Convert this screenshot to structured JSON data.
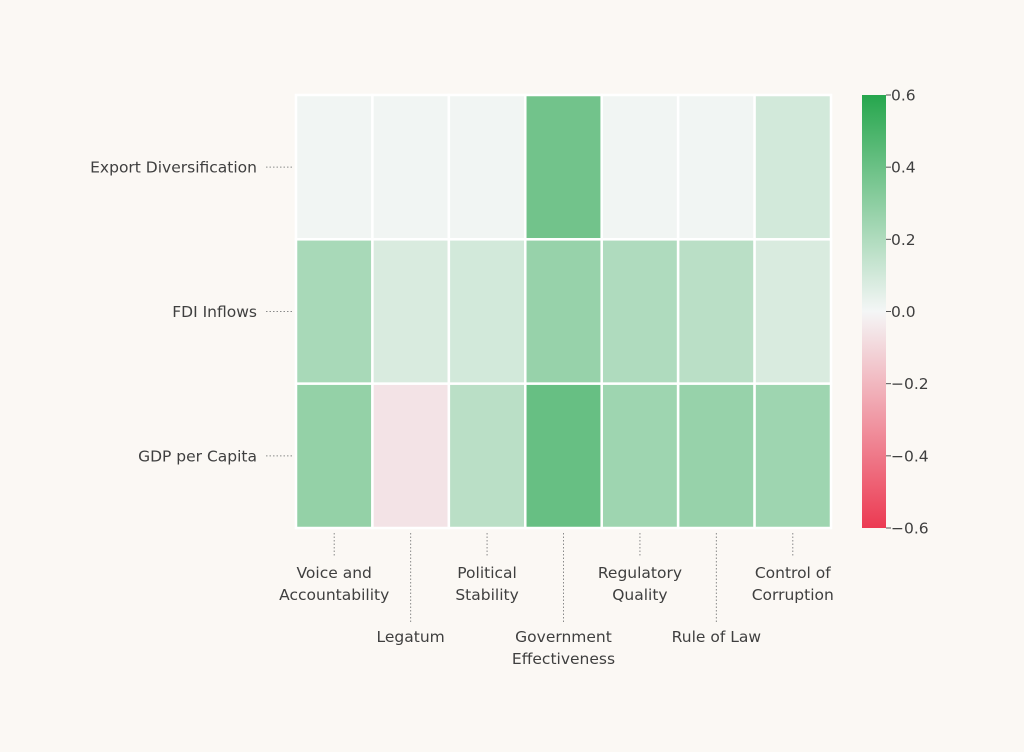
{
  "chart_data": {
    "type": "heatmap",
    "title": "",
    "xlabel": "",
    "ylabel": "",
    "rows": [
      "Export Diversification",
      "FDI Inflows",
      "GDP per Capita"
    ],
    "columns": [
      "Voice and Accountability",
      "Legatum",
      "Political Stability",
      "Government Effectiveness",
      "Regulatory Quality",
      "Rule of Law",
      "Control of Corruption"
    ],
    "column_labels": [
      [
        "Voice and",
        "Accountability"
      ],
      [
        "Legatum"
      ],
      [
        "Political",
        "Stability"
      ],
      [
        "Government",
        "Effectiveness"
      ],
      [
        "Regulatory",
        "Quality"
      ],
      [
        "Rule of Law"
      ],
      [
        "Control of",
        "Corruption"
      ]
    ],
    "values": [
      [
        0.01,
        0.01,
        0.01,
        0.38,
        0.01,
        0.01,
        0.1
      ],
      [
        0.22,
        0.08,
        0.1,
        0.27,
        0.2,
        0.17,
        0.08
      ],
      [
        0.28,
        -0.06,
        0.17,
        0.41,
        0.25,
        0.27,
        0.25
      ]
    ],
    "colorbar": {
      "min": -0.6,
      "max": 0.6,
      "ticks": [
        0.6,
        0.4,
        0.2,
        0.0,
        -0.2,
        -0.4,
        -0.6
      ],
      "tick_labels": [
        "0.6",
        "0.4",
        "0.2",
        "0.0",
        "−0.2",
        "−0.4",
        "−0.6"
      ],
      "colors": {
        "negative": "#ec3a52",
        "neutral": "#f4f6f6",
        "positive": "#26a64d"
      }
    }
  }
}
